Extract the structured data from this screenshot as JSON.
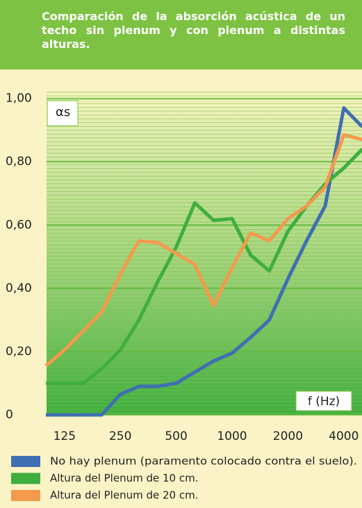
{
  "chart_data": {
    "type": "line",
    "title": "Comparación de la absorción acústica de un techo sin plenum y con plenum a distintas alturas.",
    "y_label": "αs",
    "x_label": "f (Hz)",
    "categories": [
      null,
      "125",
      null,
      null,
      "250",
      null,
      null,
      "500",
      null,
      null,
      "1000",
      null,
      null,
      "2000",
      null,
      null,
      "4000",
      null
    ],
    "series": [
      {
        "name": "No hay plenum (paramento colocado contra el suelo).",
        "color": "#3f6fb2",
        "values": [
          0,
          0,
          0,
          0,
          0.065,
          0.09,
          0.09,
          0.1,
          0.135,
          0.17,
          0.195,
          0.245,
          0.3,
          0.43,
          0.55,
          0.66,
          0.97,
          0.91
        ]
      },
      {
        "name": "Altura del Plenum de 10 cm.",
        "color": "#3fae3f",
        "values": [
          0.1,
          0.098,
          0.1,
          0.145,
          0.205,
          0.3,
          0.42,
          0.53,
          0.67,
          0.615,
          0.62,
          0.505,
          0.455,
          0.58,
          0.66,
          0.73,
          0.78,
          0.84
        ]
      },
      {
        "name": "Altura del Plenum de 20 cm.",
        "color": "#f39a4d",
        "values": [
          0.155,
          0.205,
          0.265,
          0.325,
          0.445,
          0.55,
          0.545,
          0.51,
          0.475,
          0.345,
          0.465,
          0.575,
          0.55,
          0.62,
          0.66,
          0.72,
          0.885,
          0.87
        ]
      }
    ],
    "ylim": [
      0,
      1.03
    ],
    "yticks": [
      0,
      {
        "value": 0.2,
        "label": "0,20"
      },
      {
        "value": 0.4,
        "label": "0,40"
      },
      {
        "value": 0.6,
        "label": "0,60"
      },
      {
        "value": 0.8,
        "label": "0,80"
      },
      {
        "value": 1,
        "label": "1,00"
      }
    ],
    "grid": true
  }
}
